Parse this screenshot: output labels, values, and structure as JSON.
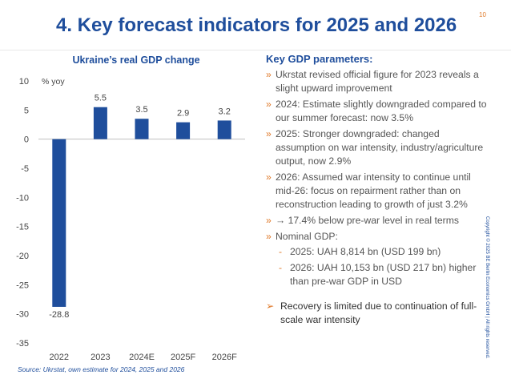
{
  "page": {
    "title": "4. Key forecast indicators for 2025 and 2026",
    "page_number": "10",
    "copyright": "Copyright © 2025 BE Berlin Economics GmbH | All rights reserved."
  },
  "colors": {
    "title": "#1f4e9c",
    "bar": "#1f4e9c",
    "accent": "#e07a2a",
    "text": "#555555"
  },
  "chart_data": {
    "type": "bar",
    "title": "Ukraine’s real GDP change",
    "ylabel": "% yoy",
    "categories": [
      "2022",
      "2023",
      "2024E",
      "2025F",
      "2026F"
    ],
    "values": [
      -28.8,
      5.5,
      3.5,
      2.9,
      3.2
    ],
    "value_labels": [
      "-28.8",
      "5.5",
      "3.5",
      "2.9",
      "3.2"
    ],
    "ylim": [
      -35,
      10
    ],
    "yticks": [
      10,
      5,
      0,
      -5,
      -10,
      -15,
      -20,
      -25,
      -30,
      -35
    ],
    "grid": false,
    "source": "Source: Ukrstat, own estimate for 2024, 2025 and 2026"
  },
  "params": {
    "title": "Key GDP parameters:",
    "bullet_marker": "»",
    "sub_marker": "-",
    "bullets": [
      "Ukrstat revised official figure for 2023 reveals a slight upward improvement",
      "2024: Estimate slightly downgraded compared to our summer forecast: now 3.5%",
      "2025: Stronger downgraded: changed assumption on war intensity, industry/agriculture output, now 2.9%",
      "2026: Assumed war intensity to continue until mid-26: focus on repairment rather than on reconstruction leading to growth of just 3.2%",
      "→ 17.4% below pre-war level in real terms",
      "Nominal GDP:"
    ],
    "sub_bullets": [
      "2025: UAH 8,814 bn (USD 199 bn)",
      "2026: UAH 10,153 bn (USD 217 bn) higher than pre-war GDP in USD"
    ],
    "recovery_marker": "➢",
    "recovery": "Recovery is limited due to continuation of full-scale war intensity"
  }
}
